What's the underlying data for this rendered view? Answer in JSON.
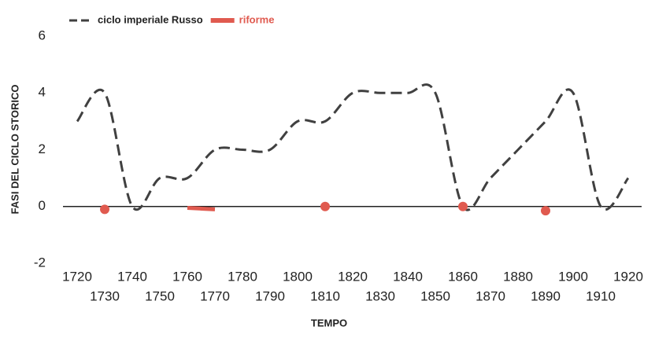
{
  "chart_data": {
    "type": "line",
    "x_label": "TEMPO",
    "y_label": "FASI DEL CICLO STORICO",
    "x": [
      1720,
      1730,
      1740,
      1750,
      1760,
      1770,
      1780,
      1790,
      1800,
      1810,
      1820,
      1830,
      1840,
      1850,
      1860,
      1870,
      1880,
      1890,
      1900,
      1910,
      1920
    ],
    "series": [
      {
        "name": "ciclo imperiale Russo",
        "color": "#404040",
        "style": "dashed",
        "values": [
          3,
          4,
          0,
          1,
          1,
          2,
          2,
          2,
          3,
          3,
          4,
          4,
          4,
          4,
          0,
          1,
          2,
          3,
          4,
          0,
          1
        ]
      },
      {
        "name": "riforme",
        "color": "#e05a4f",
        "style": "solid",
        "values": [
          null,
          -0.1,
          null,
          null,
          -0.05,
          -0.1,
          null,
          null,
          null,
          0,
          null,
          null,
          null,
          null,
          0,
          null,
          null,
          -0.15,
          null,
          null,
          null
        ]
      }
    ],
    "xlim": [
      1720,
      1920
    ],
    "xticks": [
      1720,
      1730,
      1740,
      1750,
      1760,
      1770,
      1780,
      1790,
      1800,
      1810,
      1820,
      1830,
      1840,
      1850,
      1860,
      1870,
      1880,
      1890,
      1900,
      1910,
      1920
    ],
    "ylim": [
      -2,
      6
    ],
    "yticks": [
      -2,
      0,
      2,
      4,
      6
    ],
    "legend": "top-left"
  }
}
